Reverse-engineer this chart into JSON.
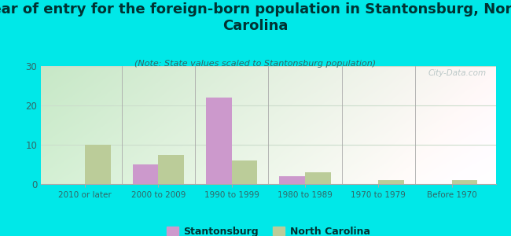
{
  "title": "Year of entry for the foreign-born population in Stantonsburg, North\nCarolina",
  "subtitle": "(Note: State values scaled to Stantonsburg population)",
  "categories": [
    "2010 or later",
    "2000 to 2009",
    "1990 to 1999",
    "1980 to 1989",
    "1970 to 1979",
    "Before 1970"
  ],
  "stantonsburg_values": [
    0,
    5,
    22,
    2,
    0,
    0
  ],
  "nc_values": [
    10,
    7.5,
    6,
    3,
    1,
    1
  ],
  "stantonsburg_color": "#cc99cc",
  "nc_color": "#bbcc99",
  "background_color": "#00e8e8",
  "plot_bg_top_left": "#c8e8c0",
  "plot_bg_top_right": "#e8f0e8",
  "plot_bg_bottom_left": "#e0f0d8",
  "plot_bg_bottom_right": "#f5faf5",
  "ylim": [
    0,
    30
  ],
  "yticks": [
    0,
    10,
    20,
    30
  ],
  "bar_width": 0.35,
  "title_fontsize": 13,
  "subtitle_fontsize": 8,
  "watermark": "City-Data.com",
  "legend_labels": [
    "Stantonsburg",
    "North Carolina"
  ],
  "title_color": "#003333",
  "subtitle_color": "#336666",
  "tick_label_color": "#336666",
  "separator_color": "#aaaaaa",
  "grid_color": "#ccddcc"
}
